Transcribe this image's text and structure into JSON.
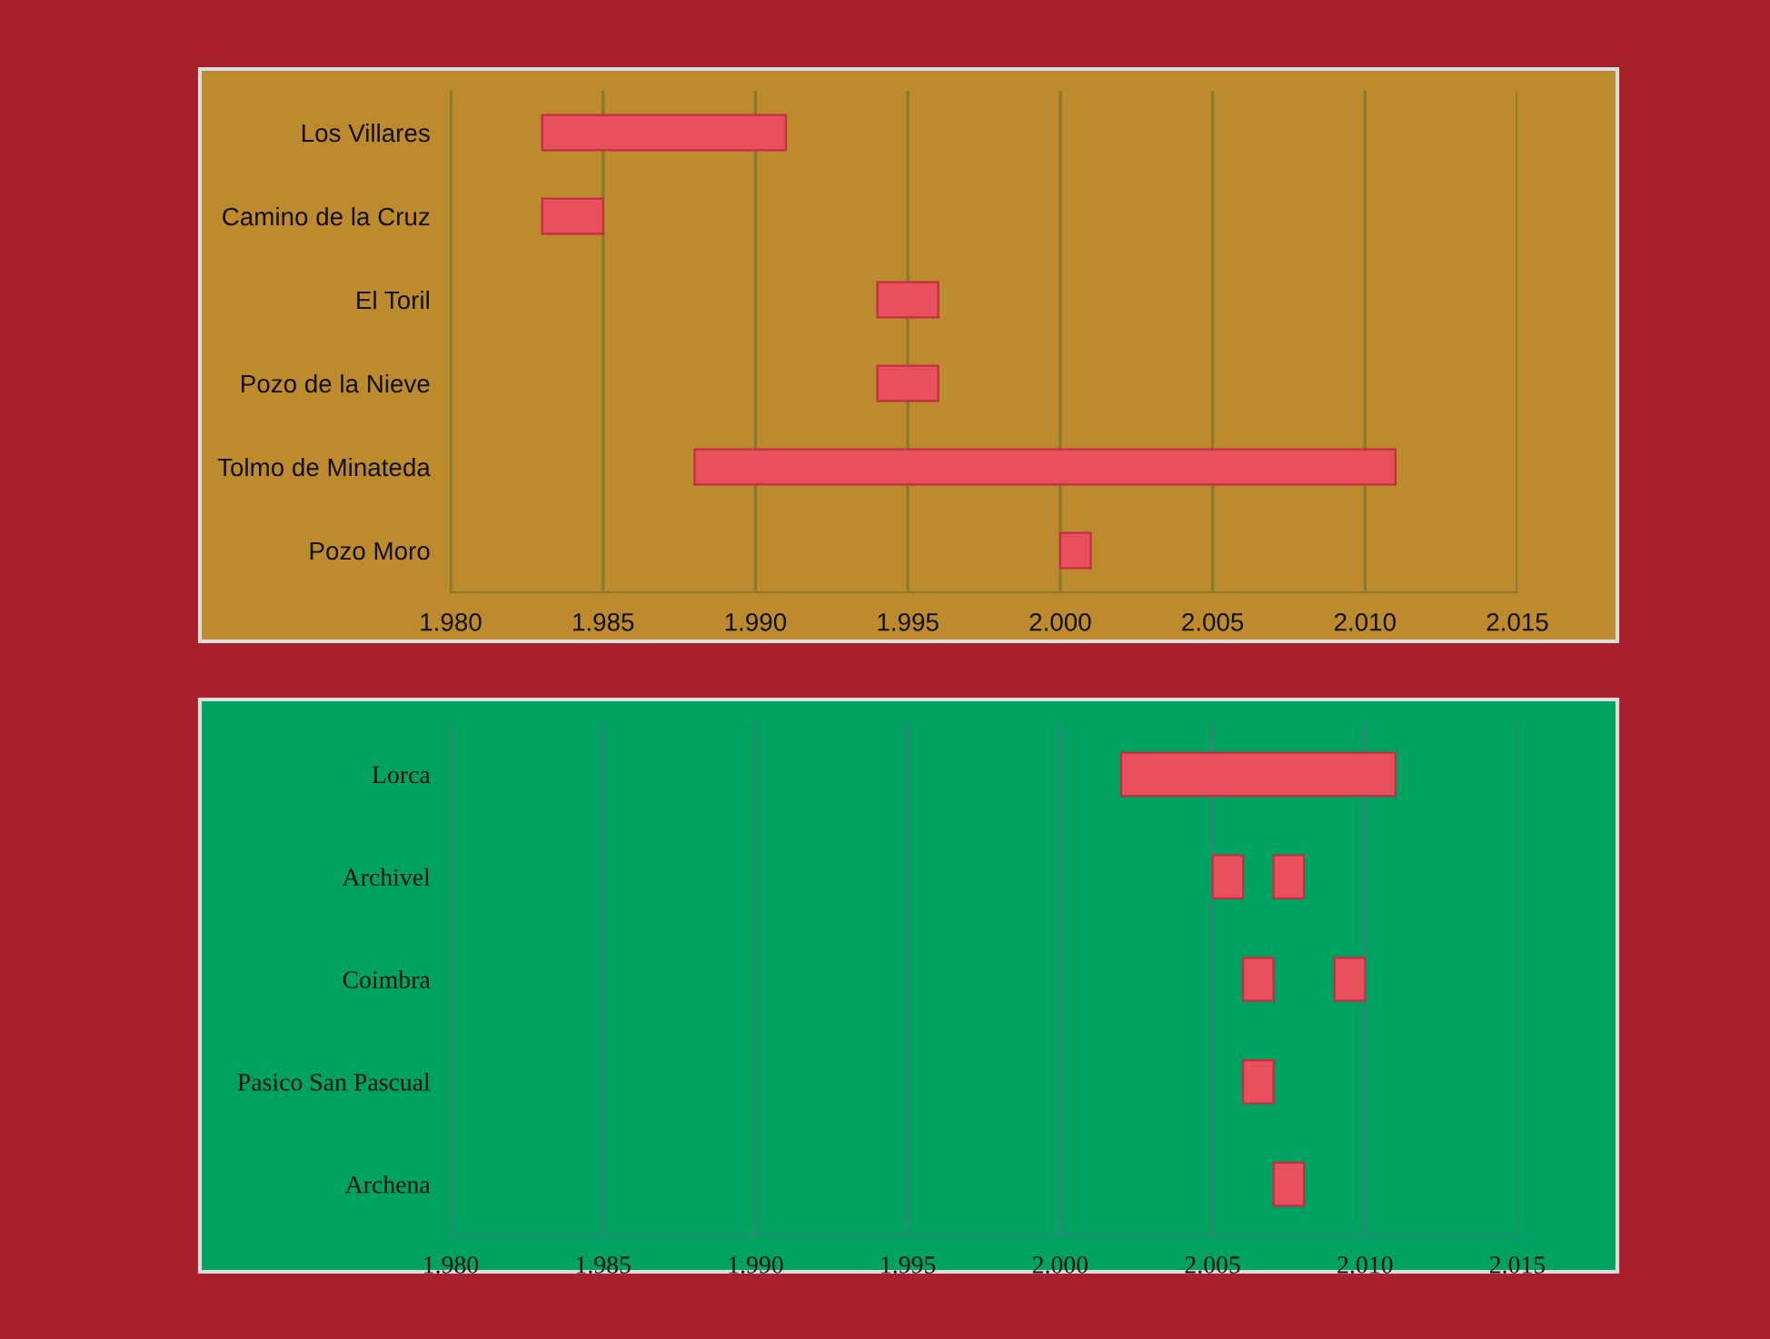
{
  "chart_data": [
    {
      "type": "bar",
      "orientation": "horizontal",
      "categories": [
        "Los Villares",
        "Camino de la Cruz",
        "El Toril",
        "Pozo de la Nieve",
        "Tolmo de Minateda",
        "Pozo Moro"
      ],
      "series": [
        {
          "color": "#e8505e",
          "base": [
            1983,
            1983,
            1994,
            1994,
            1988,
            2000
          ],
          "values": [
            8,
            2,
            2,
            2,
            23,
            1
          ]
        }
      ],
      "xlim": [
        1980,
        2015
      ],
      "xticks": [
        {
          "value": 1980,
          "label": "1.980"
        },
        {
          "value": 1985,
          "label": "1.985"
        },
        {
          "value": 1990,
          "label": "1.990"
        },
        {
          "value": 1995,
          "label": "1.995"
        },
        {
          "value": 2000,
          "label": "2.000"
        },
        {
          "value": 2005,
          "label": "2.005"
        },
        {
          "value": 2010,
          "label": "2.010"
        },
        {
          "value": 2015,
          "label": "2.015"
        }
      ],
      "grid": "x"
    },
    {
      "type": "bar",
      "orientation": "horizontal",
      "categories": [
        "Lorca",
        "Archivel",
        "Coimbra",
        "Pasico San Pascual",
        "Archena"
      ],
      "series": [
        {
          "color": "#e8505e",
          "base": [
            2002,
            2005,
            2006,
            2006,
            2007
          ],
          "values": [
            9,
            1,
            1,
            1,
            1
          ]
        },
        {
          "color": "#e8505e",
          "base": [
            null,
            2007,
            2009,
            null,
            null
          ],
          "values": [
            null,
            1,
            1,
            null,
            null
          ]
        }
      ],
      "xlim": [
        1980,
        2015
      ],
      "xticks": [
        {
          "value": 1980,
          "label": "1.980"
        },
        {
          "value": 1985,
          "label": "1.985"
        },
        {
          "value": 1990,
          "label": "1.990"
        },
        {
          "value": 1995,
          "label": "1.995"
        },
        {
          "value": 2000,
          "label": "2.000"
        },
        {
          "value": 2005,
          "label": "2.005"
        },
        {
          "value": 2010,
          "label": "2.010"
        },
        {
          "value": 2015,
          "label": "2.015"
        }
      ],
      "grid": "x"
    }
  ]
}
